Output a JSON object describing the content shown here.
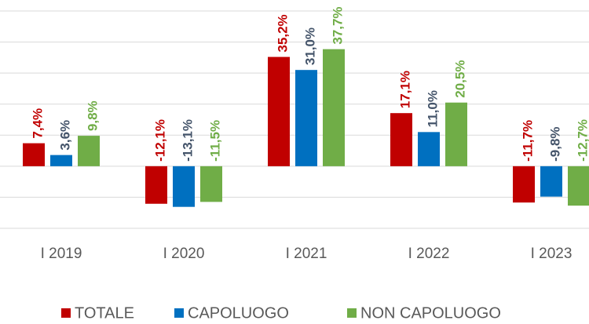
{
  "chart_data": {
    "type": "bar",
    "categories": [
      "I 2019",
      "I 2020",
      "I 2021",
      "I 2022",
      "I 2023"
    ],
    "series": [
      {
        "name": "TOTALE",
        "color": "#c00000",
        "label_color": "#c00000",
        "values": [
          7.4,
          -12.1,
          35.2,
          17.1,
          -11.7
        ],
        "value_labels": [
          "7,4%",
          "-12,1%",
          "35,2%",
          "17,1%",
          "-11,7%"
        ]
      },
      {
        "name": "CAPOLUOGO",
        "color": "#0070c0",
        "label_color": "#44546a",
        "values": [
          3.6,
          -13.1,
          31.0,
          11.0,
          -9.8
        ],
        "value_labels": [
          "3,6%",
          "-13,1%",
          "31,0%",
          "11,0%",
          "-9,8%"
        ]
      },
      {
        "name": "NON CAPOLUOGO",
        "color": "#70ad47",
        "label_color": "#70ad47",
        "values": [
          9.8,
          -11.5,
          37.7,
          20.5,
          -12.7
        ],
        "value_labels": [
          "9,8%",
          "-11,5%",
          "37,7%",
          "20,5%",
          "-12,7%"
        ]
      }
    ],
    "ylim": [
      -20,
      50
    ],
    "yticks": [
      -20,
      -10,
      0,
      10,
      20,
      30,
      40,
      50
    ],
    "grid": true
  }
}
